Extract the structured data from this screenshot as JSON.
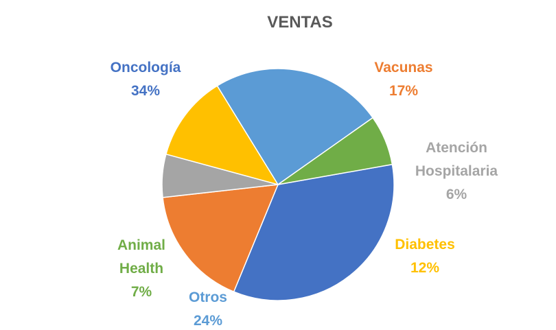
{
  "chart_data": {
    "type": "pie",
    "title": "VENTAS",
    "slices": [
      {
        "label": "Oncología",
        "lines": [
          "Oncología"
        ],
        "value": 34,
        "display": "34%",
        "color": "#4472C4"
      },
      {
        "label": "Vacunas",
        "lines": [
          "Vacunas"
        ],
        "value": 17,
        "display": "17%",
        "color": "#ED7D31"
      },
      {
        "label": "Atención Hospitalaria",
        "lines": [
          "Atención",
          "Hospitalaria"
        ],
        "value": 6,
        "display": "6%",
        "color": "#A5A5A5"
      },
      {
        "label": "Diabetes",
        "lines": [
          "Diabetes"
        ],
        "value": 12,
        "display": "12%",
        "color": "#FFC000"
      },
      {
        "label": "Otros",
        "lines": [
          "Otros"
        ],
        "value": 24,
        "display": "24%",
        "color": "#5B9BD5"
      },
      {
        "label": "Animal Health",
        "lines": [
          "Animal",
          "Health"
        ],
        "value": 7,
        "display": "7%",
        "color": "#70AD47"
      }
    ]
  }
}
